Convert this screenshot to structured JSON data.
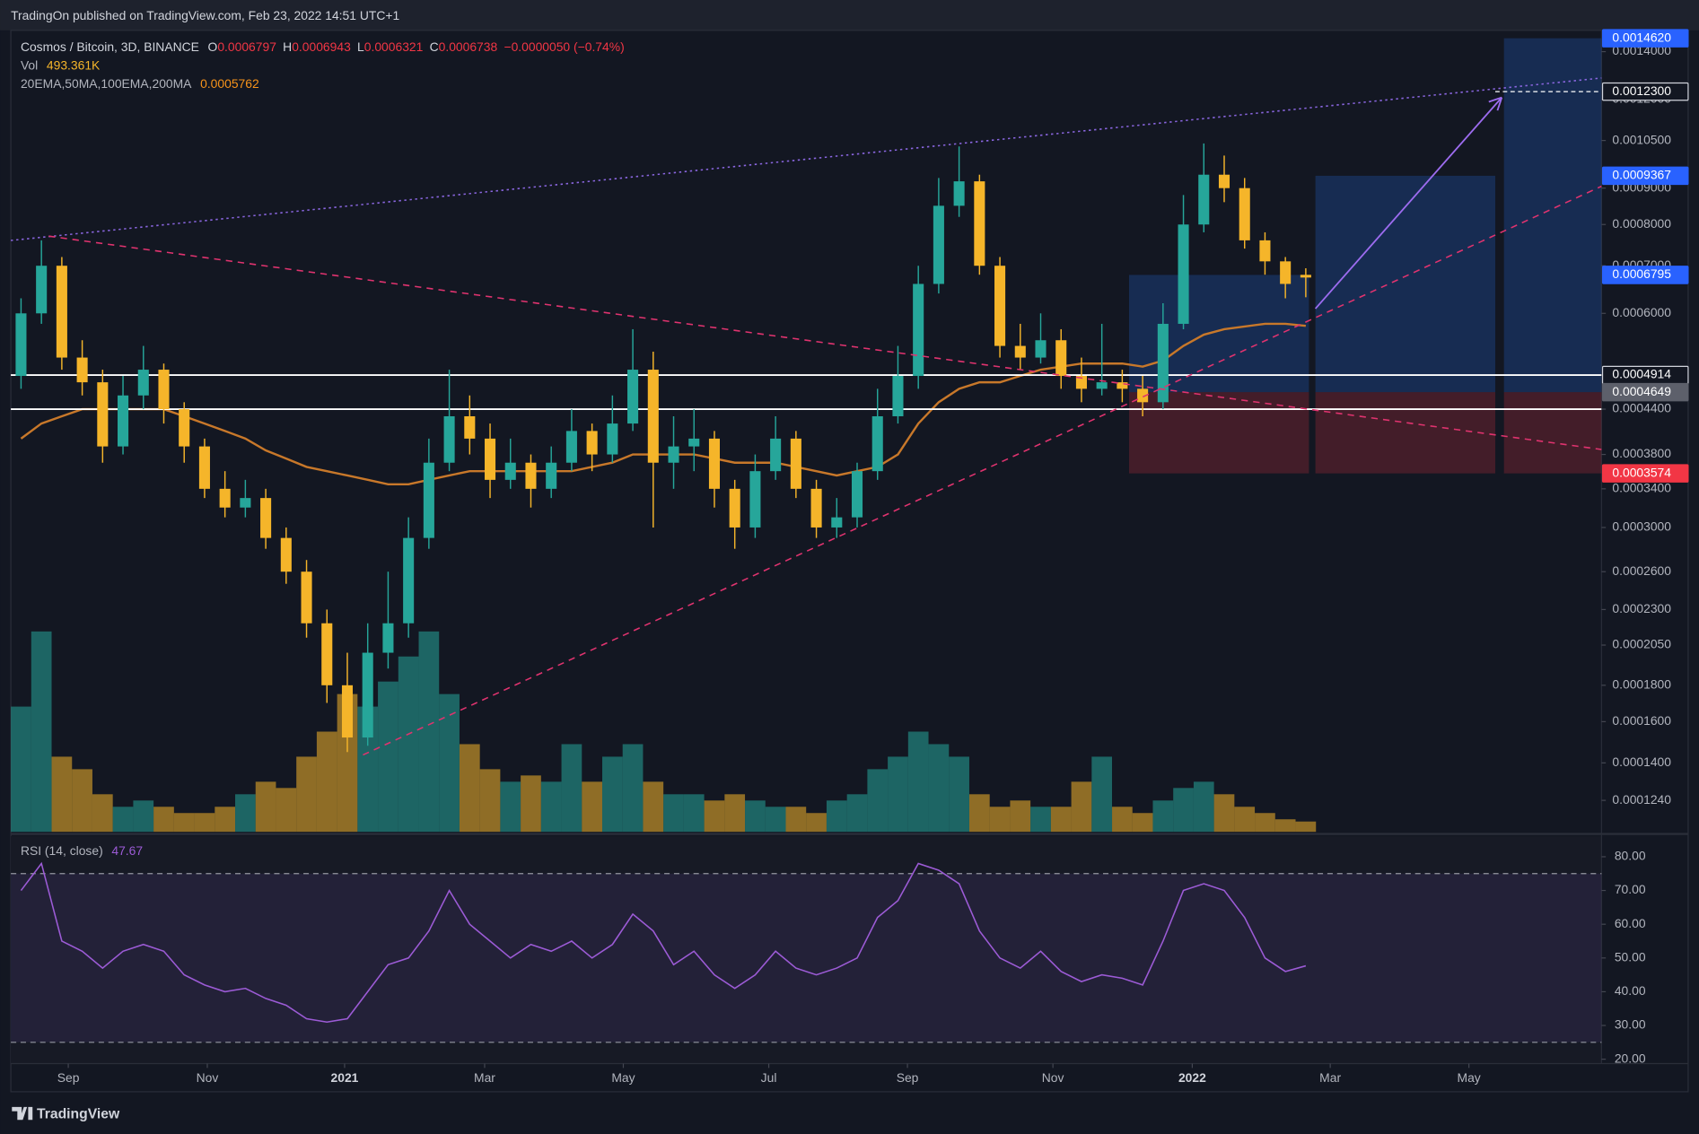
{
  "header": {
    "published": "TradingOn published on TradingView.com, Feb 23, 2022 14:51 UTC+1"
  },
  "footer": {
    "brand": "TradingView"
  },
  "chart_data": {
    "type": "candlestick",
    "symbol": "Cosmos / Bitcoin, 3D, BINANCE",
    "ohlc_legend": [
      {
        "key": "O",
        "value": "0.0006797"
      },
      {
        "key": "H",
        "value": "0.0006943"
      },
      {
        "key": "L",
        "value": "0.0006321"
      },
      {
        "key": "C",
        "value": "0.0006738"
      }
    ],
    "change": "−0.0000050 (−0.74%)",
    "volume_label": "Vol",
    "volume_value": "493.361K",
    "ma_label": "20EMA,50MA,100EMA,200MA",
    "ma_value": "0.0005762",
    "log_scale": true,
    "up_color": "#26a69a",
    "down_color": "#f5b52a",
    "ylim": [
      0.000112,
      0.0015
    ],
    "yticks": [
      {
        "value": 0.0014,
        "label": "0.0014000"
      },
      {
        "value": 0.0012,
        "label": "0.0012000"
      },
      {
        "value": 0.00105,
        "label": "0.0010500"
      },
      {
        "value": 0.0009,
        "label": "0.0009000"
      },
      {
        "value": 0.0008,
        "label": "0.0008000"
      },
      {
        "value": 0.0007,
        "label": "0.0007000"
      },
      {
        "value": 0.0006,
        "label": "0.0006000"
      },
      {
        "value": 0.00044,
        "label": "0.0004400"
      },
      {
        "value": 0.00038,
        "label": "0.0003800"
      },
      {
        "value": 0.00034,
        "label": "0.0003400"
      },
      {
        "value": 0.0003,
        "label": "0.0003000"
      },
      {
        "value": 0.00026,
        "label": "0.0002600"
      },
      {
        "value": 0.00023,
        "label": "0.0002300"
      },
      {
        "value": 0.000205,
        "label": "0.0002050"
      },
      {
        "value": 0.00018,
        "label": "0.0001800"
      },
      {
        "value": 0.00016,
        "label": "0.0001600"
      },
      {
        "value": 0.00014,
        "label": "0.0001400"
      },
      {
        "value": 0.000124,
        "label": "0.0001240"
      }
    ],
    "xlim": [
      0,
      234
    ],
    "xticks": [
      {
        "value": 8.45,
        "label": "Sep"
      },
      {
        "value": 28.9,
        "label": "Nov"
      },
      {
        "value": 49.1,
        "label": "2021"
      },
      {
        "value": 69.7,
        "label": "Mar"
      },
      {
        "value": 90.1,
        "label": "May"
      },
      {
        "value": 111.5,
        "label": "Jul"
      },
      {
        "value": 131.9,
        "label": "Sep"
      },
      {
        "value": 153.3,
        "label": "Nov"
      },
      {
        "value": 173.8,
        "label": "2022"
      },
      {
        "value": 194.1,
        "label": "Mar"
      },
      {
        "value": 214.5,
        "label": "May"
      }
    ],
    "candles": [
      [
        0.00049,
        0.00063,
        0.00047,
        0.0006
      ],
      [
        0.0006,
        0.00076,
        0.00058,
        0.0007
      ],
      [
        0.0007,
        0.00072,
        0.0005,
        0.00052
      ],
      [
        0.00052,
        0.00055,
        0.00046,
        0.00048
      ],
      [
        0.00048,
        0.0005,
        0.00037,
        0.00039
      ],
      [
        0.00039,
        0.00049,
        0.00038,
        0.00046
      ],
      [
        0.00046,
        0.00054,
        0.00044,
        0.0005
      ],
      [
        0.0005,
        0.00051,
        0.00042,
        0.00044
      ],
      [
        0.00044,
        0.00045,
        0.00037,
        0.00039
      ],
      [
        0.00039,
        0.0004,
        0.00033,
        0.00034
      ],
      [
        0.00034,
        0.00036,
        0.00031,
        0.00032
      ],
      [
        0.00032,
        0.00035,
        0.00031,
        0.00033
      ],
      [
        0.00033,
        0.00034,
        0.00028,
        0.00029
      ],
      [
        0.00029,
        0.0003,
        0.00025,
        0.00026
      ],
      [
        0.00026,
        0.00027,
        0.00021,
        0.00022
      ],
      [
        0.00022,
        0.00023,
        0.00017,
        0.00018
      ],
      [
        0.00018,
        0.0002,
        0.000145,
        0.000152
      ],
      [
        0.000152,
        0.00022,
        0.000148,
        0.0002
      ],
      [
        0.0002,
        0.00026,
        0.00019,
        0.00022
      ],
      [
        0.00022,
        0.00031,
        0.00021,
        0.00029
      ],
      [
        0.00029,
        0.0004,
        0.00028,
        0.00037
      ],
      [
        0.00037,
        0.0005,
        0.00036,
        0.00043
      ],
      [
        0.00043,
        0.00046,
        0.00038,
        0.0004
      ],
      [
        0.0004,
        0.00042,
        0.00033,
        0.00035
      ],
      [
        0.00035,
        0.0004,
        0.00034,
        0.00037
      ],
      [
        0.00037,
        0.00038,
        0.00032,
        0.00034
      ],
      [
        0.00034,
        0.00039,
        0.00033,
        0.00037
      ],
      [
        0.00037,
        0.00044,
        0.00036,
        0.00041
      ],
      [
        0.00041,
        0.00042,
        0.00036,
        0.00038
      ],
      [
        0.00038,
        0.00046,
        0.00037,
        0.00042
      ],
      [
        0.00042,
        0.00057,
        0.00041,
        0.0005
      ],
      [
        0.0005,
        0.00053,
        0.0003,
        0.00037
      ],
      [
        0.00037,
        0.00043,
        0.00034,
        0.00039
      ],
      [
        0.00039,
        0.00044,
        0.00036,
        0.0004
      ],
      [
        0.0004,
        0.00041,
        0.00032,
        0.00034
      ],
      [
        0.00034,
        0.00035,
        0.00028,
        0.0003
      ],
      [
        0.0003,
        0.00038,
        0.00029,
        0.00036
      ],
      [
        0.00036,
        0.00043,
        0.00035,
        0.0004
      ],
      [
        0.0004,
        0.00041,
        0.00033,
        0.00034
      ],
      [
        0.00034,
        0.00035,
        0.00029,
        0.0003
      ],
      [
        0.0003,
        0.00033,
        0.00029,
        0.00031
      ],
      [
        0.00031,
        0.00037,
        0.0003,
        0.00036
      ],
      [
        0.00036,
        0.00047,
        0.00035,
        0.00043
      ],
      [
        0.00043,
        0.00054,
        0.00042,
        0.00049
      ],
      [
        0.00049,
        0.0007,
        0.00047,
        0.00066
      ],
      [
        0.00066,
        0.00093,
        0.00064,
        0.00085
      ],
      [
        0.00085,
        0.00103,
        0.00082,
        0.00092
      ],
      [
        0.00092,
        0.00094,
        0.00068,
        0.0007
      ],
      [
        0.0007,
        0.00072,
        0.00052,
        0.00054
      ],
      [
        0.00054,
        0.00058,
        0.0005,
        0.00052
      ],
      [
        0.00052,
        0.0006,
        0.00051,
        0.00055
      ],
      [
        0.00055,
        0.00057,
        0.00047,
        0.00049
      ],
      [
        0.00049,
        0.00052,
        0.00045,
        0.00047
      ],
      [
        0.00047,
        0.00058,
        0.00046,
        0.00048
      ],
      [
        0.00048,
        0.0005,
        0.00045,
        0.00047
      ],
      [
        0.00047,
        0.00049,
        0.00043,
        0.00045
      ],
      [
        0.00045,
        0.00062,
        0.00044,
        0.00058
      ],
      [
        0.00058,
        0.00088,
        0.00057,
        0.0008
      ],
      [
        0.0008,
        0.00104,
        0.00078,
        0.00094
      ],
      [
        0.00094,
        0.001,
        0.00086,
        0.0009
      ],
      [
        0.0009,
        0.00093,
        0.00074,
        0.00076
      ],
      [
        0.00076,
        0.00078,
        0.00068,
        0.00071
      ],
      [
        0.00071,
        0.00072,
        0.00063,
        0.00066
      ],
      [
        0.0006797,
        0.0006943,
        0.0006321,
        0.0006738
      ]
    ],
    "ma": {
      "color": "#c8782a",
      "values": [
        0.0004,
        0.00042,
        0.00043,
        0.00044,
        0.00044,
        0.00044,
        0.00044,
        0.00044,
        0.00043,
        0.00042,
        0.00041,
        0.0004,
        0.000385,
        0.000375,
        0.000365,
        0.00036,
        0.000355,
        0.00035,
        0.000345,
        0.000345,
        0.00035,
        0.000355,
        0.00036,
        0.00036,
        0.00036,
        0.00036,
        0.00036,
        0.00036,
        0.000365,
        0.00037,
        0.00038,
        0.00038,
        0.00038,
        0.00038,
        0.000375,
        0.00037,
        0.00037,
        0.00037,
        0.000365,
        0.00036,
        0.000355,
        0.00036,
        0.000365,
        0.00038,
        0.00042,
        0.00045,
        0.00047,
        0.00048,
        0.00048,
        0.00049,
        0.0005,
        0.000505,
        0.00051,
        0.00051,
        0.00051,
        0.000505,
        0.000515,
        0.00054,
        0.00056,
        0.00057,
        0.000575,
        0.00058,
        0.00058,
        0.0005762
      ]
    },
    "volume": {
      "values": [
        6000,
        9600,
        3600,
        3000,
        1800,
        1200,
        1500,
        1200,
        900,
        900,
        1200,
        1800,
        2400,
        2100,
        3600,
        4800,
        6600,
        6000,
        7200,
        8400,
        9600,
        6600,
        4200,
        3000,
        2400,
        2700,
        2400,
        4200,
        2400,
        3600,
        4200,
        2400,
        1800,
        1800,
        1500,
        1800,
        1500,
        1200,
        1200,
        900,
        1500,
        1800,
        3000,
        3600,
        4800,
        4200,
        3600,
        1800,
        1200,
        1500,
        1200,
        1200,
        2400,
        3600,
        1200,
        900,
        1500,
        2100,
        2400,
        1800,
        1200,
        900,
        600,
        493.361
      ]
    },
    "price_lines": [
      {
        "value": 0.0004914,
        "style": "solid"
      },
      {
        "value": 0.00044,
        "style": "solid"
      },
      {
        "value": 0.00123,
        "style": "dashed"
      }
    ],
    "positions": [
      {
        "target": 0.0006795,
        "entry": 0.0004649,
        "stop": 0.0003574
      },
      {
        "target": 0.0009367,
        "entry": 0.0004649,
        "stop": 0.0003574
      },
      {
        "target": 0.001462,
        "entry": 0.0004649,
        "stop": 0.0003574
      }
    ],
    "price_labels": [
      {
        "value": 0.001462,
        "label": "0.0014620",
        "color": "#2962ff"
      },
      {
        "value": 0.00123,
        "label": "0.0012300",
        "color": "#131722"
      },
      {
        "value": 0.0009367,
        "label": "0.0009367",
        "color": "#2962ff"
      },
      {
        "value": 0.0006795,
        "label": "0.0006795",
        "color": "#2962ff"
      },
      {
        "value": 0.0004914,
        "label": "0.0004914",
        "color": "#131722"
      },
      {
        "value": 0.0004649,
        "label": "0.0004649",
        "color": "#5d606b"
      },
      {
        "value": 0.0003574,
        "label": "0.0003574",
        "color": "#f23645"
      }
    ],
    "rsi": {
      "title": "RSI (14, close)",
      "value_label": "47.67",
      "color": "#9c5bd6",
      "ylim": [
        18.7,
        86.1
      ],
      "yticks": [
        {
          "value": 80,
          "label": "80.00"
        },
        {
          "value": 70,
          "label": "70.00"
        },
        {
          "value": 60,
          "label": "60.00"
        },
        {
          "value": 50,
          "label": "50.00"
        },
        {
          "value": 40,
          "label": "40.00"
        },
        {
          "value": 30,
          "label": "30.00"
        },
        {
          "value": 20,
          "label": "20.00"
        }
      ],
      "bands": [
        25,
        75
      ],
      "values": [
        70,
        78,
        55,
        52,
        47,
        52,
        54,
        52,
        45,
        42,
        40,
        41,
        38,
        36,
        32,
        31,
        32,
        40,
        48,
        50,
        58,
        70,
        60,
        55,
        50,
        54,
        52,
        55,
        50,
        54,
        63,
        58,
        48,
        52,
        45,
        41,
        45,
        52,
        47,
        45,
        47,
        50,
        62,
        67,
        78,
        76,
        72,
        58,
        50,
        47,
        52,
        46,
        43,
        45,
        44,
        42,
        55,
        70,
        72,
        70,
        62,
        50,
        46,
        47.67
      ]
    }
  }
}
